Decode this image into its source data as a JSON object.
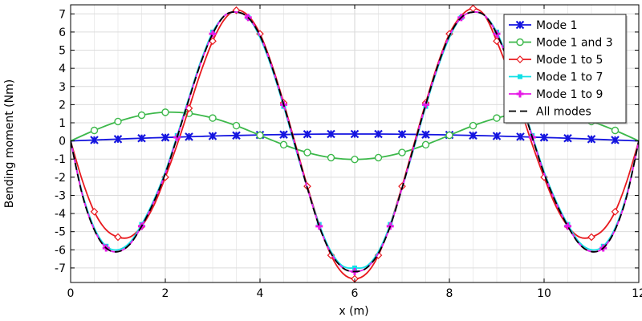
{
  "chart_data": {
    "type": "line",
    "xlabel": "x (m)",
    "ylabel": "Bending moment (Nm)",
    "xlim": [
      0,
      12
    ],
    "ylim": [
      -7.8,
      7.5
    ],
    "xticks": [
      0,
      2,
      4,
      6,
      8,
      10,
      12
    ],
    "yticks": [
      -7,
      -6,
      -5,
      -4,
      -3,
      -2,
      -1,
      0,
      1,
      2,
      3,
      4,
      5,
      6,
      7
    ],
    "grid": true,
    "legend_position": "top-right",
    "series": [
      {
        "name": "Mode 1",
        "color": "#1515e0",
        "marker": "asterisk",
        "x": [
          0,
          0.5,
          1.0,
          1.5,
          2.0,
          2.5,
          3.0,
          3.5,
          4.0,
          4.5,
          5.0,
          5.5,
          6.0,
          6.5,
          7.0,
          7.5,
          8.0,
          8.5,
          9.0,
          9.5,
          10.0,
          10.5,
          11.0,
          11.5,
          12.0
        ],
        "y": [
          0,
          0.05,
          0.1,
          0.15,
          0.19,
          0.23,
          0.27,
          0.3,
          0.33,
          0.35,
          0.37,
          0.38,
          0.38,
          0.38,
          0.37,
          0.35,
          0.33,
          0.3,
          0.27,
          0.23,
          0.19,
          0.15,
          0.1,
          0.05,
          0
        ]
      },
      {
        "name": "Mode 1 and 3",
        "color": "#3cb84a",
        "marker": "circle",
        "x": [
          0,
          0.5,
          1.0,
          1.5,
          2.0,
          2.5,
          3.0,
          3.5,
          4.0,
          4.5,
          5.0,
          5.5,
          6.0,
          6.5,
          7.0,
          7.5,
          8.0,
          8.5,
          9.0,
          9.5,
          10.0,
          10.5,
          11.0,
          11.5,
          12.0
        ],
        "y": [
          0,
          0.58,
          1.07,
          1.42,
          1.58,
          1.52,
          1.26,
          0.84,
          0.31,
          -0.21,
          -0.64,
          -0.92,
          -1.02,
          -0.92,
          -0.64,
          -0.21,
          0.31,
          0.84,
          1.26,
          1.52,
          1.58,
          1.42,
          1.07,
          0.58,
          0
        ]
      },
      {
        "name": "Mode 1 to 5",
        "color": "#e8191e",
        "marker": "diamond",
        "x": [
          0,
          0.25,
          0.5,
          0.75,
          1.0,
          1.25,
          1.5,
          1.75,
          2.0,
          2.25,
          2.5,
          2.75,
          3.0,
          3.25,
          3.5,
          3.75,
          4.0,
          4.25,
          4.5,
          4.75,
          5.0,
          5.25,
          5.5,
          5.75,
          6.0,
          6.25,
          6.5,
          6.75,
          7.0,
          7.25,
          7.5,
          7.75,
          8.0,
          8.25,
          8.5,
          8.75,
          9.0,
          9.25,
          9.5,
          9.75,
          10.0,
          10.25,
          10.5,
          10.75,
          11.0,
          11.25,
          11.5,
          11.75,
          12.0
        ],
        "y": [
          0,
          -2.2,
          -3.9,
          -4.9,
          -5.3,
          -5.3,
          -4.7,
          -3.6,
          -2.0,
          -0.2,
          1.8,
          3.8,
          5.5,
          6.7,
          7.2,
          6.9,
          5.9,
          4.2,
          2.1,
          -0.2,
          -2.5,
          -4.6,
          -6.3,
          -7.3,
          -7.6,
          -7.3,
          -6.3,
          -4.6,
          -2.5,
          -0.2,
          2.1,
          4.2,
          5.9,
          6.9,
          7.3,
          6.9,
          5.5,
          3.8,
          1.8,
          -0.2,
          -2.0,
          -3.6,
          -4.7,
          -5.3,
          -5.3,
          -4.9,
          -3.9,
          -2.2,
          0
        ]
      },
      {
        "name": "Mode 1 to 7",
        "color": "#11e0e6",
        "marker": "square",
        "x": [
          0,
          0.25,
          0.5,
          0.75,
          1.0,
          1.25,
          1.5,
          1.75,
          2.0,
          2.25,
          2.5,
          2.75,
          3.0,
          3.25,
          3.5,
          3.75,
          4.0,
          4.25,
          4.5,
          4.75,
          5.0,
          5.25,
          5.5,
          5.75,
          6.0,
          6.25,
          6.5,
          6.75,
          7.0,
          7.25,
          7.5,
          7.75,
          8.0,
          8.25,
          8.5,
          8.75,
          9.0,
          9.25,
          9.5,
          9.75,
          10.0,
          10.25,
          10.5,
          10.75,
          11.0,
          11.25,
          11.5,
          11.75,
          12.0
        ],
        "y": [
          0,
          -2.9,
          -4.8,
          -5.8,
          -6.0,
          -5.6,
          -4.6,
          -3.3,
          -1.7,
          0.3,
          2.4,
          4.4,
          6.0,
          6.9,
          7.1,
          6.8,
          5.7,
          4.0,
          1.9,
          -0.4,
          -2.6,
          -4.6,
          -6.1,
          -6.9,
          -7.0,
          -6.9,
          -6.1,
          -4.6,
          -2.6,
          -0.4,
          1.9,
          4.0,
          5.7,
          6.8,
          7.1,
          6.9,
          6.0,
          4.4,
          2.4,
          0.3,
          -1.7,
          -3.3,
          -4.6,
          -5.6,
          -6.0,
          -5.8,
          -4.8,
          -2.9,
          0
        ]
      },
      {
        "name": "Mode 1 to 9",
        "color": "#e619e6",
        "marker": "plus",
        "x": [
          0,
          0.25,
          0.5,
          0.75,
          1.0,
          1.25,
          1.5,
          1.75,
          2.0,
          2.25,
          2.5,
          2.75,
          3.0,
          3.25,
          3.5,
          3.75,
          4.0,
          4.25,
          4.5,
          4.75,
          5.0,
          5.25,
          5.5,
          5.75,
          6.0,
          6.25,
          6.5,
          6.75,
          7.0,
          7.25,
          7.5,
          7.75,
          8.0,
          8.25,
          8.5,
          8.75,
          9.0,
          9.25,
          9.5,
          9.75,
          10.0,
          10.25,
          10.5,
          10.75,
          11.0,
          11.25,
          11.5,
          11.75,
          12.0
        ],
        "y": [
          0,
          -3.0,
          -4.9,
          -5.9,
          -6.1,
          -5.7,
          -4.7,
          -3.4,
          -1.8,
          0.2,
          2.3,
          4.3,
          5.9,
          6.9,
          7.1,
          6.8,
          5.8,
          4.1,
          2.0,
          -0.3,
          -2.6,
          -4.7,
          -6.2,
          -7.0,
          -7.2,
          -7.0,
          -6.2,
          -4.7,
          -2.6,
          -0.3,
          2.0,
          4.1,
          5.8,
          6.8,
          7.1,
          6.9,
          5.9,
          4.3,
          2.3,
          0.2,
          -1.8,
          -3.4,
          -4.7,
          -5.7,
          -6.1,
          -5.9,
          -4.9,
          -3.0,
          0
        ]
      },
      {
        "name": "All modes",
        "color": "#000000",
        "marker": "none",
        "x": [
          0,
          0.25,
          0.5,
          0.75,
          1.0,
          1.25,
          1.5,
          1.75,
          2.0,
          2.25,
          2.5,
          2.75,
          3.0,
          3.25,
          3.5,
          3.75,
          4.0,
          4.25,
          4.5,
          4.75,
          5.0,
          5.25,
          5.5,
          5.75,
          6.0,
          6.25,
          6.5,
          6.75,
          7.0,
          7.25,
          7.5,
          7.75,
          8.0,
          8.25,
          8.5,
          8.75,
          9.0,
          9.25,
          9.5,
          9.75,
          10.0,
          10.25,
          10.5,
          10.75,
          11.0,
          11.25,
          11.5,
          11.75,
          12.0
        ],
        "y": [
          0,
          -3.0,
          -4.9,
          -5.9,
          -6.1,
          -5.7,
          -4.7,
          -3.4,
          -1.8,
          0.2,
          2.3,
          4.3,
          5.9,
          6.9,
          7.1,
          6.8,
          5.8,
          4.1,
          2.0,
          -0.3,
          -2.6,
          -4.7,
          -6.2,
          -7.0,
          -7.2,
          -7.0,
          -6.2,
          -4.7,
          -2.6,
          -0.3,
          2.0,
          4.1,
          5.8,
          6.8,
          7.1,
          6.9,
          5.9,
          4.3,
          2.3,
          0.2,
          -1.8,
          -3.4,
          -4.7,
          -5.7,
          -6.1,
          -5.9,
          -4.9,
          -3.0,
          0
        ]
      }
    ]
  }
}
